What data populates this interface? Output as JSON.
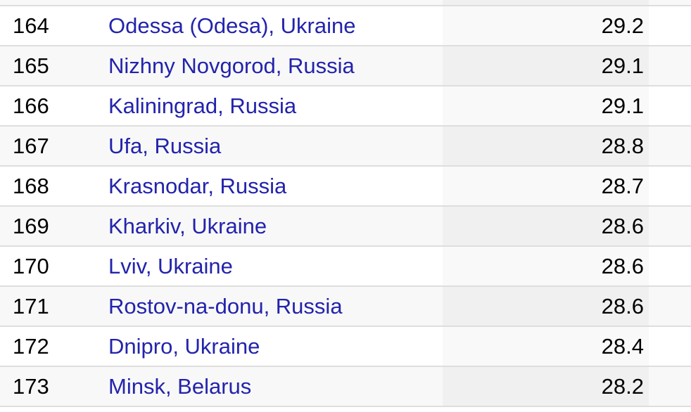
{
  "table": {
    "rows": [
      {
        "rank": "164",
        "city": "Odessa (Odesa), Ukraine",
        "value": "29.2"
      },
      {
        "rank": "165",
        "city": "Nizhny Novgorod, Russia",
        "value": "29.1"
      },
      {
        "rank": "166",
        "city": "Kaliningrad, Russia",
        "value": "29.1"
      },
      {
        "rank": "167",
        "city": "Ufa, Russia",
        "value": "28.8"
      },
      {
        "rank": "168",
        "city": "Krasnodar, Russia",
        "value": "28.7"
      },
      {
        "rank": "169",
        "city": "Kharkiv, Ukraine",
        "value": "28.6"
      },
      {
        "rank": "170",
        "city": "Lviv, Ukraine",
        "value": "28.6"
      },
      {
        "rank": "171",
        "city": "Rostov-na-donu, Russia",
        "value": "28.6"
      },
      {
        "rank": "172",
        "city": "Dnipro, Ukraine",
        "value": "28.4"
      },
      {
        "rank": "173",
        "city": "Minsk, Belarus",
        "value": "28.2"
      }
    ]
  },
  "colors": {
    "link_blue": "#2323ad",
    "row_white": "#ffffff",
    "row_stripe": "#f8f8f8",
    "value_column_on_white": "#f9f9f9",
    "value_column_on_stripe": "#f0f0f0",
    "row_border": "#dedede",
    "text_black": "#000000"
  }
}
